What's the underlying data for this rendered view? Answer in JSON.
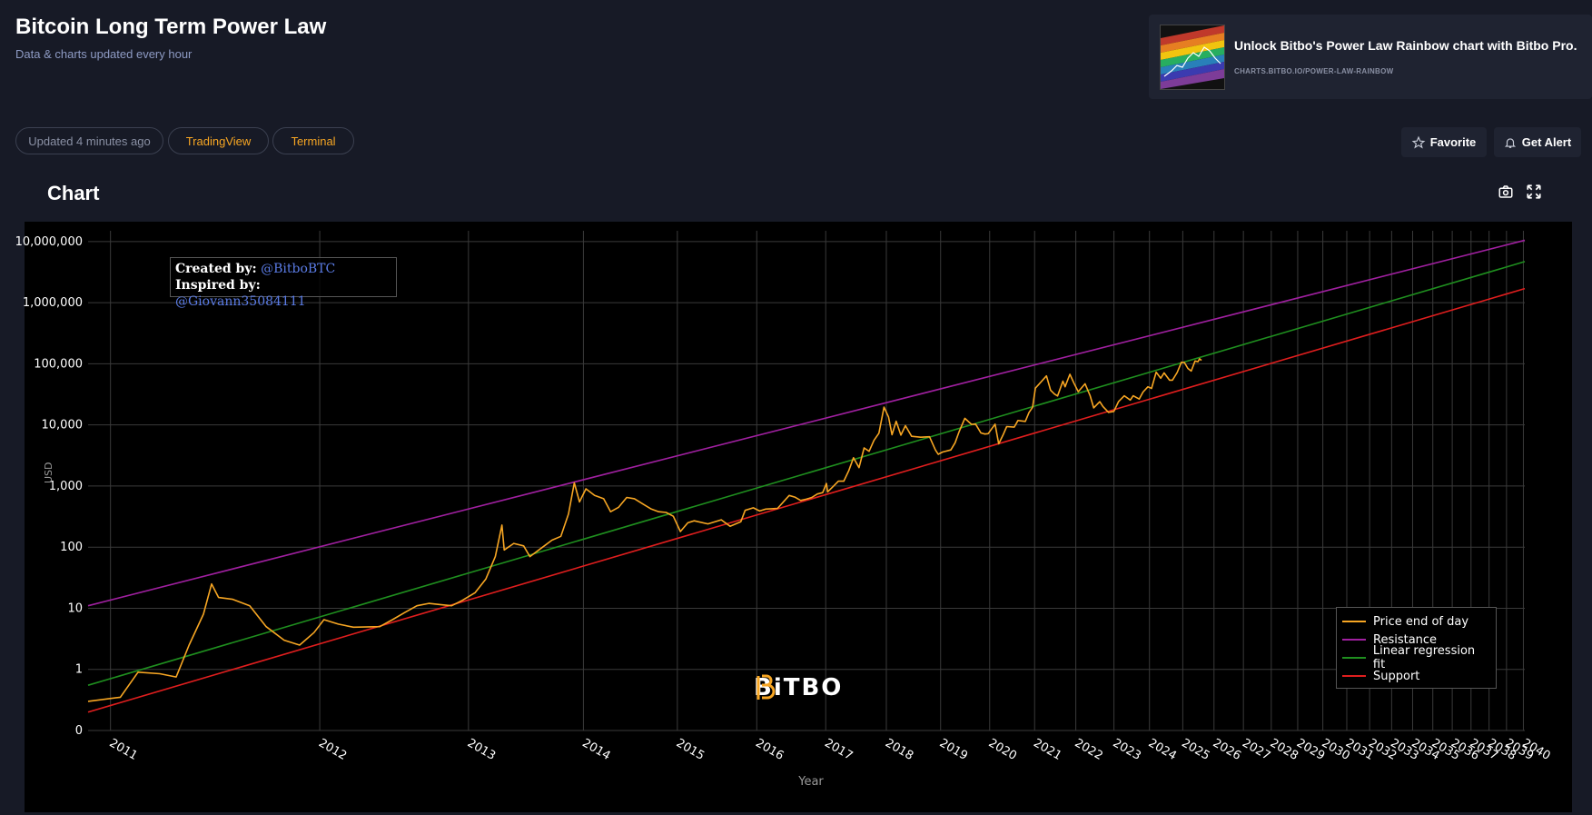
{
  "header": {
    "title": "Bitcoin Long Term Power Law",
    "subtitle": "Data & charts updated every hour"
  },
  "promo": {
    "title": "Unlock Bitbo's Power Law Rainbow chart with Bitbo Pro.",
    "url": "CHARTS.BITBO.IO/POWER-LAW-RAINBOW"
  },
  "toolbar": {
    "updated": "Updated 4 minutes ago",
    "tradingview": "TradingView",
    "terminal": "Terminal",
    "favorite": "Favorite",
    "get_alert": "Get Alert"
  },
  "section": {
    "chart_heading": "Chart"
  },
  "credits": {
    "created_label": "Created by:",
    "created_handle": "@BitboBTC",
    "inspired_label": "Inspired by:",
    "inspired_handle": "@Giovann35084111"
  },
  "watermark": "BiTBO",
  "colors": {
    "accent": "#f7a623",
    "price": "#f7a623",
    "resistance": "#a020a0",
    "regression": "#1f8f1f",
    "support": "#e01e1e"
  },
  "chart_data": {
    "type": "line",
    "xlabel": "Year",
    "ylabel": "USD",
    "x_scale": "log (days since genesis)",
    "y_scale": "log",
    "xlim": [
      "2010-12-01",
      "2040-02-01"
    ],
    "ylim": [
      0.1,
      15000000
    ],
    "grid": true,
    "legend_position": "bottom-right",
    "x_tick_labels": [
      "2011",
      "2012",
      "2013",
      "2014",
      "2015",
      "2016",
      "2017",
      "2018",
      "2019",
      "2020",
      "2021",
      "2022",
      "2023",
      "2024",
      "2025",
      "2026",
      "2027",
      "2028",
      "2029",
      "2030",
      "2031",
      "2032",
      "2033",
      "2034",
      "2035",
      "2036",
      "2037",
      "2038",
      "2039",
      "2040"
    ],
    "y_ticks": [
      0.1,
      1,
      10,
      100,
      1000,
      10000,
      100000,
      1000000,
      10000000
    ],
    "y_tick_labels": [
      "0",
      "1",
      "10",
      "100",
      "1,000",
      "10,000",
      "100,000",
      "1,000,000",
      "10,000,000"
    ],
    "series": [
      {
        "name": "Price end of day",
        "color": "#f7a623",
        "points": [
          [
            "2010-12-01",
            0.3
          ],
          [
            "2011-01-15",
            0.35
          ],
          [
            "2011-02-10",
            0.9
          ],
          [
            "2011-03-15",
            0.85
          ],
          [
            "2011-04-10",
            0.75
          ],
          [
            "2011-05-01",
            2.5
          ],
          [
            "2011-05-25",
            8
          ],
          [
            "2011-06-08",
            25
          ],
          [
            "2011-06-20",
            15
          ],
          [
            "2011-07-15",
            14
          ],
          [
            "2011-08-15",
            11
          ],
          [
            "2011-09-15",
            5
          ],
          [
            "2011-10-20",
            3
          ],
          [
            "2011-11-20",
            2.5
          ],
          [
            "2011-12-20",
            4
          ],
          [
            "2012-01-10",
            6.5
          ],
          [
            "2012-02-10",
            5.5
          ],
          [
            "2012-03-15",
            4.9
          ],
          [
            "2012-05-15",
            5
          ],
          [
            "2012-06-15",
            6.5
          ],
          [
            "2012-07-15",
            8.5
          ],
          [
            "2012-08-15",
            11
          ],
          [
            "2012-09-15",
            12
          ],
          [
            "2012-10-15",
            11.5
          ],
          [
            "2012-11-15",
            11
          ],
          [
            "2012-12-15",
            13.5
          ],
          [
            "2013-01-20",
            18
          ],
          [
            "2013-02-20",
            30
          ],
          [
            "2013-03-20",
            70
          ],
          [
            "2013-04-09",
            230
          ],
          [
            "2013-04-16",
            90
          ],
          [
            "2013-05-15",
            115
          ],
          [
            "2013-06-15",
            105
          ],
          [
            "2013-07-05",
            70
          ],
          [
            "2013-08-15",
            100
          ],
          [
            "2013-09-15",
            130
          ],
          [
            "2013-10-15",
            150
          ],
          [
            "2013-11-10",
            350
          ],
          [
            "2013-11-30",
            1130
          ],
          [
            "2013-12-18",
            550
          ],
          [
            "2014-01-10",
            900
          ],
          [
            "2014-02-10",
            700
          ],
          [
            "2014-03-15",
            620
          ],
          [
            "2014-04-10",
            380
          ],
          [
            "2014-05-10",
            450
          ],
          [
            "2014-06-10",
            650
          ],
          [
            "2014-07-10",
            620
          ],
          [
            "2014-08-15",
            500
          ],
          [
            "2014-09-15",
            420
          ],
          [
            "2014-10-15",
            380
          ],
          [
            "2014-11-15",
            370
          ],
          [
            "2014-12-15",
            320
          ],
          [
            "2015-01-14",
            180
          ],
          [
            "2015-02-15",
            250
          ],
          [
            "2015-03-15",
            270
          ],
          [
            "2015-05-15",
            240
          ],
          [
            "2015-07-15",
            280
          ],
          [
            "2015-08-25",
            220
          ],
          [
            "2015-10-15",
            260
          ],
          [
            "2015-11-05",
            400
          ],
          [
            "2015-12-15",
            440
          ],
          [
            "2016-01-15",
            390
          ],
          [
            "2016-02-15",
            420
          ],
          [
            "2016-04-15",
            430
          ],
          [
            "2016-06-15",
            700
          ],
          [
            "2016-07-15",
            660
          ],
          [
            "2016-08-15",
            580
          ],
          [
            "2016-09-15",
            610
          ],
          [
            "2016-10-15",
            650
          ],
          [
            "2016-11-15",
            740
          ],
          [
            "2016-12-15",
            780
          ],
          [
            "2017-01-05",
            1100
          ],
          [
            "2017-01-12",
            800
          ],
          [
            "2017-02-15",
            1000
          ],
          [
            "2017-03-15",
            1200
          ],
          [
            "2017-04-15",
            1200
          ],
          [
            "2017-05-15",
            1800
          ],
          [
            "2017-06-12",
            2900
          ],
          [
            "2017-07-15",
            2000
          ],
          [
            "2017-08-15",
            4200
          ],
          [
            "2017-09-15",
            3700
          ],
          [
            "2017-10-15",
            5600
          ],
          [
            "2017-11-15",
            7300
          ],
          [
            "2017-12-17",
            19500
          ],
          [
            "2018-01-15",
            13500
          ],
          [
            "2018-02-06",
            6900
          ],
          [
            "2018-03-05",
            11500
          ],
          [
            "2018-04-05",
            6800
          ],
          [
            "2018-05-05",
            9700
          ],
          [
            "2018-06-15",
            6500
          ],
          [
            "2018-08-15",
            6300
          ],
          [
            "2018-10-15",
            6400
          ],
          [
            "2018-11-25",
            3900
          ],
          [
            "2018-12-15",
            3300
          ],
          [
            "2019-01-15",
            3600
          ],
          [
            "2019-03-15",
            3900
          ],
          [
            "2019-04-15",
            5100
          ],
          [
            "2019-05-15",
            7800
          ],
          [
            "2019-06-26",
            12800
          ],
          [
            "2019-08-15",
            10200
          ],
          [
            "2019-09-15",
            10300
          ],
          [
            "2019-10-25",
            7400
          ],
          [
            "2019-11-25",
            7100
          ],
          [
            "2019-12-20",
            7200
          ],
          [
            "2020-02-12",
            10300
          ],
          [
            "2020-03-12",
            4900
          ],
          [
            "2020-04-15",
            6800
          ],
          [
            "2020-05-15",
            9400
          ],
          [
            "2020-07-15",
            9200
          ],
          [
            "2020-08-15",
            11800
          ],
          [
            "2020-10-15",
            11400
          ],
          [
            "2020-11-15",
            16000
          ],
          [
            "2020-12-15",
            19400
          ],
          [
            "2021-01-08",
            40000
          ],
          [
            "2021-02-15",
            48000
          ],
          [
            "2021-04-13",
            63500
          ],
          [
            "2021-05-19",
            37000
          ],
          [
            "2021-06-22",
            32000
          ],
          [
            "2021-07-20",
            29800
          ],
          [
            "2021-09-06",
            52000
          ],
          [
            "2021-09-25",
            42000
          ],
          [
            "2021-11-08",
            67500
          ],
          [
            "2021-12-15",
            48000
          ],
          [
            "2022-01-24",
            35000
          ],
          [
            "2022-03-28",
            47000
          ],
          [
            "2022-05-15",
            30000
          ],
          [
            "2022-06-18",
            19000
          ],
          [
            "2022-08-15",
            24000
          ],
          [
            "2022-09-15",
            20000
          ],
          [
            "2022-11-09",
            16000
          ],
          [
            "2022-12-31",
            16600
          ],
          [
            "2023-02-15",
            24000
          ],
          [
            "2023-04-15",
            30000
          ],
          [
            "2023-06-15",
            25500
          ],
          [
            "2023-07-15",
            30000
          ],
          [
            "2023-09-15",
            26500
          ],
          [
            "2023-10-25",
            34500
          ],
          [
            "2023-12-15",
            42000
          ],
          [
            "2024-01-23",
            39500
          ],
          [
            "2024-03-13",
            73000
          ],
          [
            "2024-05-01",
            58000
          ],
          [
            "2024-06-07",
            71000
          ],
          [
            "2024-08-05",
            54000
          ],
          [
            "2024-09-07",
            54000
          ],
          [
            "2024-10-29",
            72000
          ],
          [
            "2024-12-17",
            106000
          ],
          [
            "2025-01-20",
            105000
          ],
          [
            "2025-02-28",
            84000
          ],
          [
            "2025-04-08",
            76000
          ],
          [
            "2025-05-22",
            111000
          ],
          [
            "2025-06-25",
            108000
          ],
          [
            "2025-07-14",
            121000
          ],
          [
            "2025-08-05",
            114000
          ]
        ]
      },
      {
        "name": "Resistance",
        "color": "#a020a0",
        "line": [
          [
            "2010-12-01",
            11
          ],
          [
            "2040-02-01",
            10500000
          ]
        ]
      },
      {
        "name": "Linear regression fit",
        "color": "#1f8f1f",
        "line": [
          [
            "2010-12-01",
            0.55
          ],
          [
            "2040-02-01",
            4700000
          ]
        ]
      },
      {
        "name": "Support",
        "color": "#e01e1e",
        "line": [
          [
            "2010-12-01",
            0.2
          ],
          [
            "2040-02-01",
            1700000
          ]
        ]
      }
    ]
  }
}
